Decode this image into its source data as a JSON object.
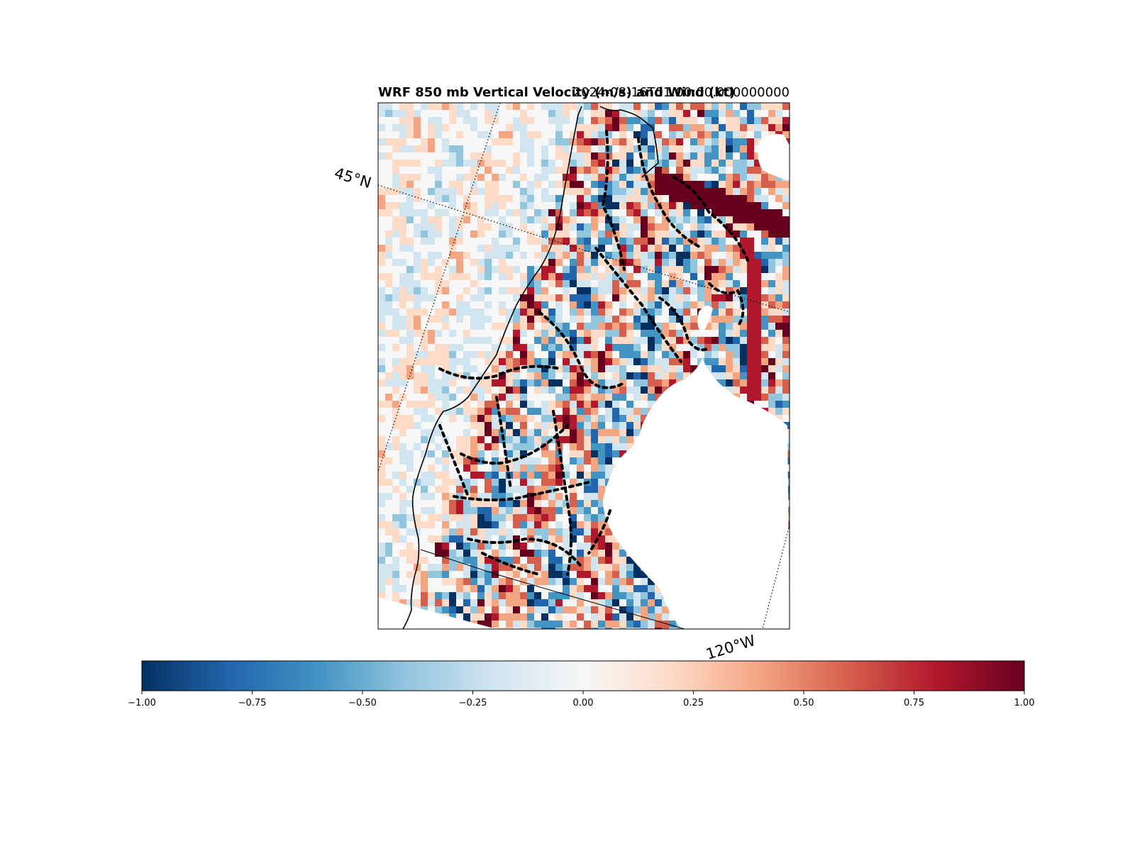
{
  "figure": {
    "title": "WRF 850 mb Vertical Velocity (m/s) and Wind (kt)",
    "valid_time": "2024-08-16T01:00:00.000000000"
  },
  "map": {
    "parallel_label": "45°N",
    "meridian_label": "120°W"
  },
  "colorbar": {
    "colormap": "RdBu_r",
    "range": [
      -1.0,
      1.0
    ],
    "ticks": [
      "−1.00",
      "−0.75",
      "−0.50",
      "−0.25",
      "0.00",
      "0.25",
      "0.50",
      "0.75",
      "1.00"
    ],
    "colors": [
      "#053061",
      "#2166ac",
      "#4393c3",
      "#92c5de",
      "#d1e5f0",
      "#f7f7f7",
      "#fddbc7",
      "#f4a582",
      "#d6604d",
      "#b2182b",
      "#67001f"
    ]
  }
}
